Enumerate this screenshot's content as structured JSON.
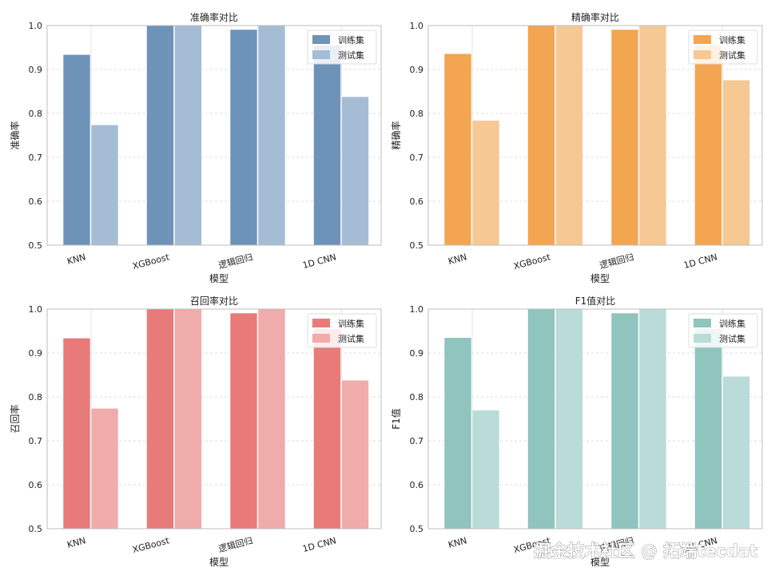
{
  "chart_data": [
    {
      "type": "bar",
      "title": "准确率对比",
      "xlabel": "模型",
      "ylabel": "准确率",
      "categories": [
        "KNN",
        "XGBoost",
        "逻辑回归",
        "1D CNN"
      ],
      "ylim": [
        0.5,
        1.0
      ],
      "yticks": [
        "0.5",
        "0.6",
        "0.7",
        "0.8",
        "0.9",
        "1.0"
      ],
      "grid": true,
      "legend": "top-right",
      "series": [
        {
          "name": "训练集",
          "color": "#6e93b9",
          "values": [
            0.934,
            1.0,
            0.991,
            0.955
          ]
        },
        {
          "name": "测试集",
          "color": "#a5bcd5",
          "values": [
            0.774,
            1.0,
            1.0,
            0.838
          ]
        }
      ]
    },
    {
      "type": "bar",
      "title": "精确率对比",
      "xlabel": "模型",
      "ylabel": "精确率",
      "categories": [
        "KNN",
        "XGBoost",
        "逻辑回归",
        "1D CNN"
      ],
      "ylim": [
        0.5,
        1.0
      ],
      "yticks": [
        "0.5",
        "0.6",
        "0.7",
        "0.8",
        "0.9",
        "1.0"
      ],
      "grid": true,
      "legend": "top-right",
      "series": [
        {
          "name": "训练集",
          "color": "#f3a552",
          "values": [
            0.936,
            1.0,
            0.991,
            0.955
          ]
        },
        {
          "name": "测试集",
          "color": "#f6c894",
          "values": [
            0.784,
            1.0,
            1.0,
            0.876
          ]
        }
      ]
    },
    {
      "type": "bar",
      "title": "召回率对比",
      "xlabel": "模型",
      "ylabel": "召回率",
      "categories": [
        "KNN",
        "XGBoost",
        "逻辑回归",
        "1D CNN"
      ],
      "ylim": [
        0.5,
        1.0
      ],
      "yticks": [
        "0.5",
        "0.6",
        "0.7",
        "0.8",
        "0.9",
        "1.0"
      ],
      "grid": true,
      "legend": "top-right",
      "series": [
        {
          "name": "训练集",
          "color": "#e87a7a",
          "values": [
            0.934,
            1.0,
            0.991,
            0.955
          ]
        },
        {
          "name": "测试集",
          "color": "#f0abab",
          "values": [
            0.774,
            1.0,
            1.0,
            0.838
          ]
        }
      ]
    },
    {
      "type": "bar",
      "title": "F1值对比",
      "xlabel": "模型",
      "ylabel": "F1值",
      "categories": [
        "KNN",
        "XGBoost",
        "逻辑回归",
        "1D CNN"
      ],
      "ylim": [
        0.5,
        1.0
      ],
      "yticks": [
        "0.5",
        "0.6",
        "0.7",
        "0.8",
        "0.9",
        "1.0"
      ],
      "grid": true,
      "legend": "top-right",
      "series": [
        {
          "name": "训练集",
          "color": "#8fc4bf",
          "values": [
            0.935,
            1.0,
            0.991,
            0.955
          ]
        },
        {
          "name": "测试集",
          "color": "#badcd8",
          "values": [
            0.77,
            1.0,
            1.0,
            0.847
          ]
        }
      ]
    }
  ],
  "watermark": "掘金技术社区 @ 拓端tecdat"
}
